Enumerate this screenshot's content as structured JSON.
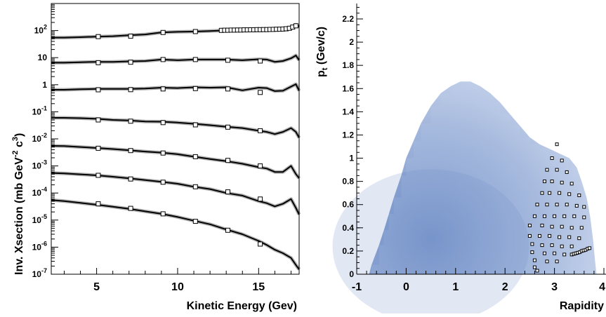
{
  "chart_data": [
    {
      "type": "line",
      "panel": "left",
      "xlabel": "Kinetic Energy (Gev)",
      "ylabel": "Inv. Xsection  (mb GeV",
      "ylabel_sup1": "-2",
      "ylabel_mid": " c",
      "ylabel_sup2": "3",
      "ylabel_end": ")",
      "xlim": [
        2.2,
        17.5
      ],
      "ylim_log10": [
        -7,
        3
      ],
      "log_y": true,
      "x_ticks": [
        5,
        10,
        15
      ],
      "x_tick_labels": [
        "5",
        "10",
        "15"
      ],
      "y_tick_labels": [
        {
          "exp": 2,
          "base": "10",
          "sup": "2"
        },
        {
          "exp": 1,
          "base": "10",
          "sup": ""
        },
        {
          "exp": 0,
          "base": "1",
          "sup": ""
        },
        {
          "exp": -1,
          "base": "10",
          "sup": "-1"
        },
        {
          "exp": -2,
          "base": "10",
          "sup": "-2"
        },
        {
          "exp": -3,
          "base": "10",
          "sup": "-3"
        },
        {
          "exp": -4,
          "base": "10",
          "sup": "-4"
        },
        {
          "exp": -5,
          "base": "10",
          "sup": "-5"
        },
        {
          "exp": -6,
          "base": "10",
          "sup": "-6"
        },
        {
          "exp": -7,
          "base": "10",
          "sup": "-7"
        }
      ],
      "curve_x": [
        2.2,
        3,
        4,
        5,
        6,
        7,
        8,
        9,
        10,
        11,
        12,
        13,
        14,
        15,
        15.5,
        16,
        16.5,
        17,
        17.3,
        17.5
      ],
      "series": [
        {
          "curve": [
            55,
            55,
            57,
            60,
            62,
            67,
            72,
            85,
            90,
            92,
            96,
            102,
            105,
            110,
            108,
            115,
            112,
            125,
            165,
            140
          ],
          "points": [
            [
              5.1,
              60
            ],
            [
              7.1,
              62
            ],
            [
              9.1,
              85
            ],
            [
              11.1,
              92
            ],
            [
              12.7,
              102
            ],
            [
              12.9,
              103
            ],
            [
              13.1,
              103
            ],
            [
              13.3,
              104
            ],
            [
              13.5,
              104
            ],
            [
              13.7,
              105
            ],
            [
              13.9,
              105
            ],
            [
              14.1,
              106
            ],
            [
              14.3,
              106
            ],
            [
              14.5,
              107
            ],
            [
              14.7,
              107
            ],
            [
              14.9,
              108
            ],
            [
              15.1,
              108
            ],
            [
              15.3,
              109
            ],
            [
              15.5,
              109
            ],
            [
              15.7,
              110
            ],
            [
              15.9,
              111
            ],
            [
              16.1,
              112
            ],
            [
              16.3,
              113
            ],
            [
              16.5,
              114
            ],
            [
              16.7,
              117
            ],
            [
              16.9,
              122
            ],
            [
              17.1,
              135
            ],
            [
              17.3,
              150
            ]
          ]
        },
        {
          "curve": [
            6.5,
            6.5,
            6.8,
            7,
            7,
            7.3,
            7.5,
            8.5,
            8,
            8.5,
            8.5,
            8.5,
            8,
            8.7,
            8.5,
            7,
            7.5,
            9.5,
            12,
            8
          ],
          "points": [
            [
              5.1,
              6.5
            ],
            [
              7.1,
              6.8
            ],
            [
              9.1,
              8.5
            ],
            [
              11.1,
              8.5
            ],
            [
              13.1,
              8
            ],
            [
              15.1,
              7.5
            ]
          ]
        },
        {
          "curve": [
            0.65,
            0.65,
            0.68,
            0.7,
            0.7,
            0.7,
            0.72,
            0.78,
            0.75,
            0.8,
            0.78,
            0.8,
            0.62,
            0.78,
            0.75,
            0.58,
            0.6,
            0.85,
            1.05,
            0.6
          ],
          "points": [
            [
              5.1,
              0.65
            ],
            [
              7.1,
              0.66
            ],
            [
              9.1,
              0.7
            ],
            [
              11.1,
              0.72
            ],
            [
              13.1,
              0.7
            ],
            [
              15.1,
              0.52
            ]
          ]
        },
        {
          "curve": [
            0.06,
            0.06,
            0.058,
            0.055,
            0.05,
            0.048,
            0.044,
            0.043,
            0.04,
            0.036,
            0.032,
            0.028,
            0.025,
            0.02,
            0.018,
            0.015,
            0.018,
            0.025,
            0.018,
            0.011
          ],
          "points": [
            [
              5.1,
              0.05
            ],
            [
              7.1,
              0.045
            ],
            [
              9.1,
              0.04
            ],
            [
              11.1,
              0.033
            ],
            [
              13.1,
              0.027
            ],
            [
              15.1,
              0.02
            ]
          ]
        },
        {
          "curve": [
            0.0055,
            0.0054,
            0.005,
            0.0046,
            0.0042,
            0.0038,
            0.0034,
            0.0031,
            0.0027,
            0.0022,
            0.0018,
            0.0015,
            0.0012,
            0.0009,
            0.0008,
            0.0006,
            0.0006,
            0.001,
            0.0005,
            0.00035
          ],
          "points": [
            [
              5.1,
              0.0045
            ],
            [
              7.1,
              0.0037
            ],
            [
              9.1,
              0.003
            ],
            [
              11.1,
              0.0022
            ],
            [
              13.1,
              0.0016
            ],
            [
              15.1,
              0.001
            ]
          ]
        },
        {
          "curve": [
            0.00055,
            0.00053,
            0.00049,
            0.00045,
            0.0004,
            0.00035,
            0.0003,
            0.00026,
            0.00022,
            0.00017,
            0.00014,
            0.0001,
            8e-05,
            5e-05,
            4.2e-05,
            3.2e-05,
            4e-05,
            6e-05,
            2.8e-05,
            1.6e-05
          ],
          "points": [
            [
              5.1,
              0.00045
            ],
            [
              7.1,
              0.00033
            ],
            [
              9.1,
              0.00025
            ],
            [
              11.1,
              0.00017
            ],
            [
              13.1,
              0.00011
            ],
            [
              15.1,
              6e-05
            ]
          ]
        },
        {
          "curve": [
            5.5e-05,
            5e-05,
            4.3e-05,
            3.7e-05,
            3.1e-05,
            2.6e-05,
            2.1e-05,
            1.7e-05,
            1.3e-05,
            9.5e-06,
            7e-06,
            4.5e-06,
            3e-06,
            1.7e-06,
            1.2e-06,
            8e-07,
            6e-07,
            4e-07,
            2.2e-07,
            1.5e-07
          ],
          "points": [
            [
              5.1,
              4e-05
            ],
            [
              7.1,
              2.7e-05
            ],
            [
              9.1,
              1.7e-05
            ],
            [
              11.1,
              9e-06
            ],
            [
              13.1,
              4.2e-06
            ],
            [
              15.1,
              1.3e-06
            ]
          ]
        }
      ]
    },
    {
      "type": "heatmap",
      "panel": "right",
      "xlabel": "Rapidity",
      "ylabel_base": "p",
      "ylabel_sub": "t",
      "ylabel_rest": " (Gev/c)",
      "xlim": [
        -1,
        4
      ],
      "ylim": [
        0,
        2.35
      ],
      "x_ticks": [
        -1,
        0,
        1,
        2,
        3,
        4
      ],
      "x_tick_labels": [
        "-1",
        "0",
        "1",
        "2",
        "3",
        "4"
      ],
      "y_ticks": [
        0,
        0.2,
        0.4,
        0.6,
        0.8,
        1,
        1.2,
        1.4,
        1.6,
        1.8,
        2,
        2.2
      ],
      "y_tick_labels": [
        "0",
        "0.2",
        "0.4",
        "0.6",
        "0.8",
        "1",
        "1.2",
        "1.4",
        "1.6",
        "1.8",
        "2",
        "2.2"
      ],
      "color": "#4a6fb8",
      "density_peak": [
        0.5,
        0.3
      ],
      "points": [
        [
          3.05,
          1.12
        ],
        [
          2.95,
          1.0
        ],
        [
          3.15,
          0.98
        ],
        [
          2.85,
          0.9
        ],
        [
          3.05,
          0.9
        ],
        [
          3.25,
          0.88
        ],
        [
          2.8,
          0.8
        ],
        [
          2.95,
          0.8
        ],
        [
          3.15,
          0.79
        ],
        [
          3.35,
          0.78
        ],
        [
          2.75,
          0.7
        ],
        [
          2.9,
          0.7
        ],
        [
          3.1,
          0.7
        ],
        [
          3.3,
          0.69
        ],
        [
          3.5,
          0.68
        ],
        [
          2.65,
          0.6
        ],
        [
          2.85,
          0.6
        ],
        [
          3.05,
          0.6
        ],
        [
          3.25,
          0.6
        ],
        [
          3.45,
          0.59
        ],
        [
          3.6,
          0.58
        ],
        [
          2.6,
          0.5
        ],
        [
          2.8,
          0.5
        ],
        [
          3.0,
          0.5
        ],
        [
          3.2,
          0.5
        ],
        [
          3.4,
          0.5
        ],
        [
          3.6,
          0.49
        ],
        [
          2.5,
          0.42
        ],
        [
          2.75,
          0.42
        ],
        [
          2.95,
          0.41
        ],
        [
          3.15,
          0.41
        ],
        [
          3.35,
          0.4
        ],
        [
          3.55,
          0.4
        ],
        [
          2.5,
          0.33
        ],
        [
          2.7,
          0.33
        ],
        [
          2.9,
          0.33
        ],
        [
          3.1,
          0.32
        ],
        [
          3.3,
          0.32
        ],
        [
          3.5,
          0.31
        ],
        [
          2.55,
          0.26
        ],
        [
          2.75,
          0.25
        ],
        [
          2.95,
          0.25
        ],
        [
          3.15,
          0.24
        ],
        [
          3.35,
          0.24
        ],
        [
          2.55,
          0.19
        ],
        [
          2.8,
          0.18
        ],
        [
          3.0,
          0.18
        ],
        [
          3.2,
          0.17
        ],
        [
          2.6,
          0.12
        ],
        [
          2.85,
          0.11
        ],
        [
          3.05,
          0.11
        ],
        [
          2.6,
          0.06
        ],
        [
          2.65,
          0.03
        ],
        [
          3.35,
          0.17
        ],
        [
          3.39,
          0.175
        ],
        [
          3.43,
          0.18
        ],
        [
          3.47,
          0.185
        ],
        [
          3.51,
          0.19
        ],
        [
          3.55,
          0.2
        ],
        [
          3.59,
          0.205
        ],
        [
          3.63,
          0.21
        ],
        [
          3.67,
          0.22
        ],
        [
          3.71,
          0.225
        ]
      ]
    }
  ]
}
